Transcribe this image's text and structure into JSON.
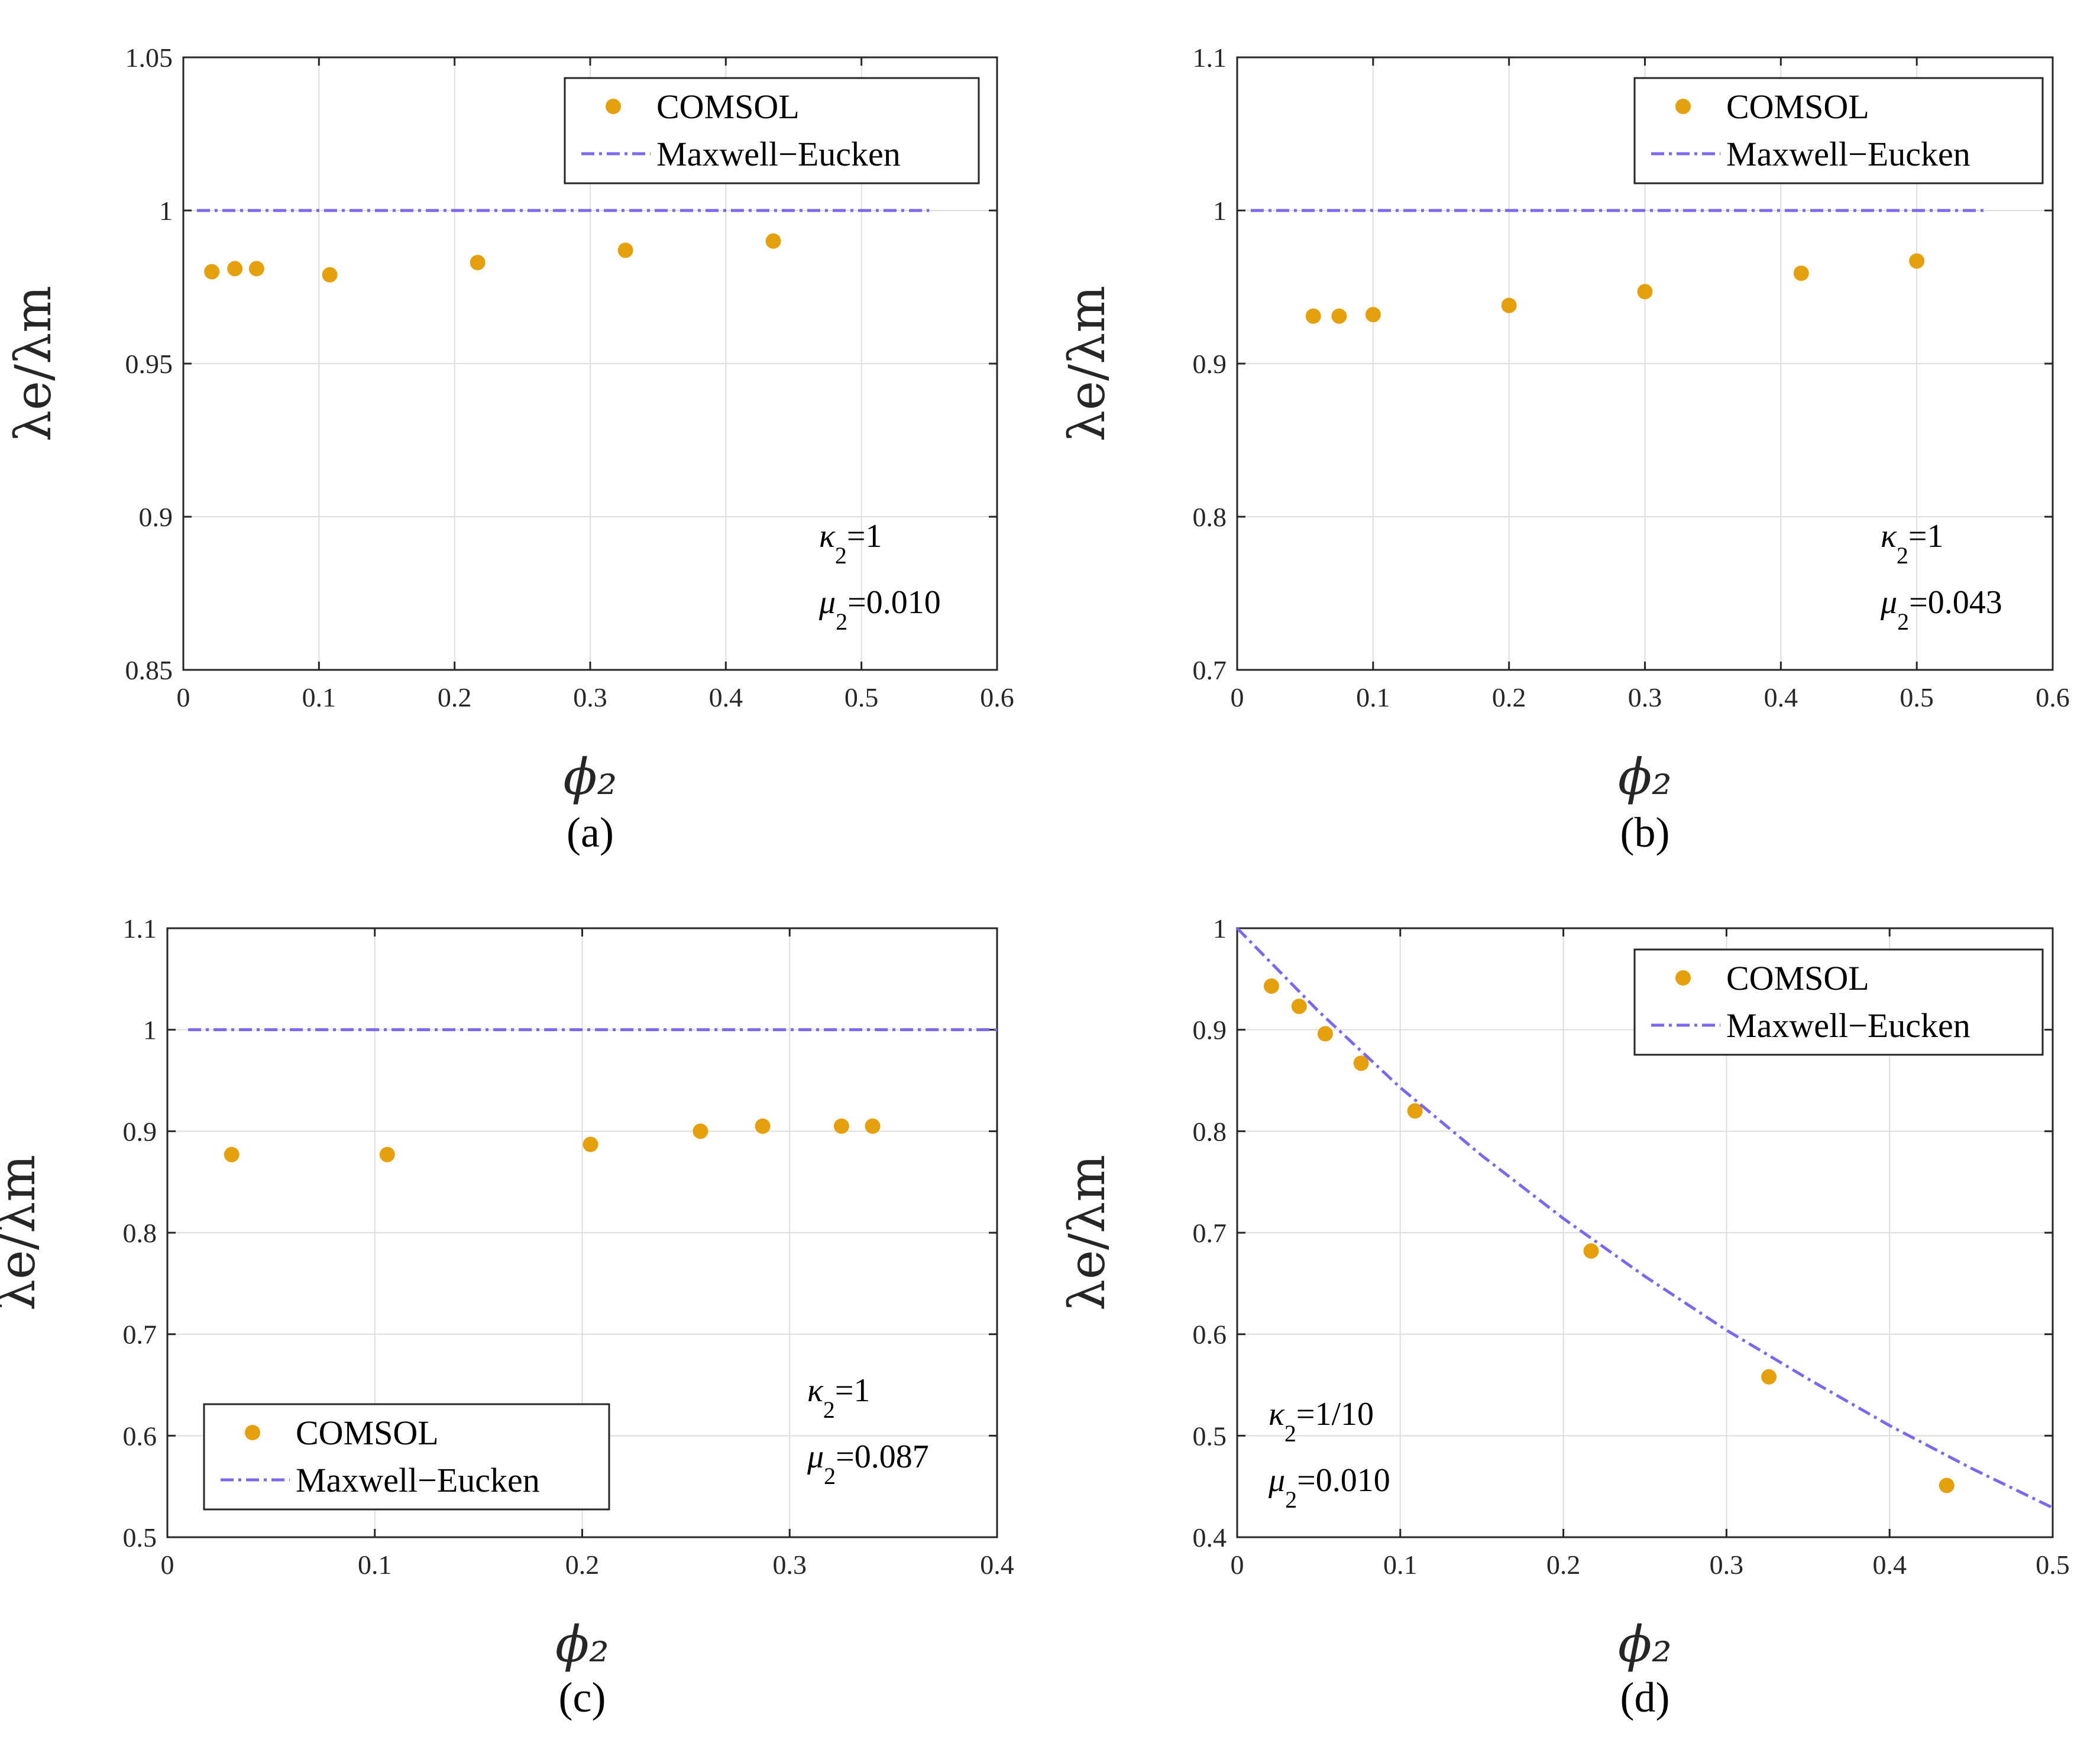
{
  "colors": {
    "comsol": "#e5a00d",
    "maxwell": "#7b68ee",
    "grid": "#dedede",
    "axis": "#262626"
  },
  "chart_data": [
    {
      "panel": "a",
      "panel_label": "(a)",
      "type": "scatter",
      "xlabel": "ϕ₂",
      "ylabel": "λe/λm",
      "xlim": [
        0,
        0.6
      ],
      "ylim": [
        0.85,
        1.05
      ],
      "xticks": [
        0,
        0.1,
        0.2,
        0.3,
        0.4,
        0.5,
        0.6
      ],
      "xtick_labels": [
        "0",
        "0.1",
        "0.2",
        "0.3",
        "0.4",
        "0.5",
        "0.6"
      ],
      "yticks": [
        0.85,
        0.9,
        0.95,
        1,
        1.05
      ],
      "ytick_labels": [
        "0.85",
        "0.9",
        "0.95",
        "1",
        "1.05"
      ],
      "grid": true,
      "legend": {
        "position": "top-right",
        "entries": [
          "COMSOL",
          "Maxwell−Eucken"
        ]
      },
      "annotation": {
        "position": "bottom-right",
        "lines": [
          [
            "κ",
            "2",
            "=1"
          ],
          [
            "μ",
            "2",
            "=0.010"
          ]
        ]
      },
      "series": [
        {
          "name": "COMSOL",
          "kind": "points",
          "x": [
            0.021,
            0.038,
            0.054,
            0.108,
            0.217,
            0.326,
            0.435
          ],
          "y": [
            0.98,
            0.981,
            0.981,
            0.979,
            0.983,
            0.987,
            0.99
          ]
        },
        {
          "name": "Maxwell−Eucken",
          "kind": "line",
          "style": "dash-dot",
          "x": [
            0.01,
            0.55
          ],
          "y": [
            1,
            1
          ]
        }
      ]
    },
    {
      "panel": "b",
      "panel_label": "(b)",
      "type": "scatter",
      "xlabel": "ϕ₂",
      "ylabel": "λe/λm",
      "xlim": [
        0,
        0.6
      ],
      "ylim": [
        0.7,
        1.1
      ],
      "xticks": [
        0,
        0.1,
        0.2,
        0.3,
        0.4,
        0.5,
        0.6
      ],
      "xtick_labels": [
        "0",
        "0.1",
        "0.2",
        "0.3",
        "0.4",
        "0.5",
        "0.6"
      ],
      "yticks": [
        0.7,
        0.8,
        0.9,
        1,
        1.1
      ],
      "ytick_labels": [
        "0.7",
        "0.8",
        "0.9",
        "1",
        "1.1"
      ],
      "grid": true,
      "legend": {
        "position": "top-right",
        "entries": [
          "COMSOL",
          "Maxwell−Eucken"
        ]
      },
      "annotation": {
        "position": "bottom-right",
        "lines": [
          [
            "κ",
            "2",
            "=1"
          ],
          [
            "μ",
            "2",
            "=0.043"
          ]
        ]
      },
      "series": [
        {
          "name": "COMSOL",
          "kind": "points",
          "x": [
            0.056,
            0.075,
            0.1,
            0.2,
            0.3,
            0.415,
            0.5
          ],
          "y": [
            0.931,
            0.931,
            0.932,
            0.938,
            0.947,
            0.959,
            0.967
          ]
        },
        {
          "name": "Maxwell−Eucken",
          "kind": "line",
          "style": "dash-dot",
          "x": [
            0.01,
            0.55
          ],
          "y": [
            1,
            1
          ]
        }
      ]
    },
    {
      "panel": "c",
      "panel_label": "(c)",
      "type": "scatter",
      "xlabel": "ϕ₂",
      "ylabel": "λe/λm",
      "xlim": [
        0,
        0.4
      ],
      "ylim": [
        0.5,
        1.1
      ],
      "xticks": [
        0,
        0.1,
        0.2,
        0.3,
        0.4
      ],
      "xtick_labels": [
        "0",
        "0.1",
        "0.2",
        "0.3",
        "0.4"
      ],
      "yticks": [
        0.5,
        0.6,
        0.7,
        0.8,
        0.9,
        1,
        1.1
      ],
      "ytick_labels": [
        "0.5",
        "0.6",
        "0.7",
        "0.8",
        "0.9",
        "1",
        "1.1"
      ],
      "grid": true,
      "legend": {
        "position": "bottom-left",
        "entries": [
          "COMSOL",
          "Maxwell−Eucken"
        ]
      },
      "annotation": {
        "position": "bottom-right",
        "lines": [
          [
            "κ",
            "2",
            "=1"
          ],
          [
            "μ",
            "2",
            "=0.087"
          ]
        ]
      },
      "series": [
        {
          "name": "COMSOL",
          "kind": "points",
          "x": [
            0.031,
            0.106,
            0.204,
            0.257,
            0.287,
            0.325,
            0.34
          ],
          "y": [
            0.877,
            0.877,
            0.887,
            0.9,
            0.905,
            0.905,
            0.905
          ]
        },
        {
          "name": "Maxwell−Eucken",
          "kind": "line",
          "style": "dash-dot",
          "x": [
            0.01,
            0.4
          ],
          "y": [
            1,
            1
          ]
        }
      ]
    },
    {
      "panel": "d",
      "panel_label": "(d)",
      "type": "scatter",
      "xlabel": "ϕ₂",
      "ylabel": "λe/λm",
      "xlim": [
        0,
        0.5
      ],
      "ylim": [
        0.4,
        1
      ],
      "xticks": [
        0,
        0.1,
        0.2,
        0.3,
        0.4,
        0.5
      ],
      "xtick_labels": [
        "0",
        "0.1",
        "0.2",
        "0.3",
        "0.4",
        "0.5"
      ],
      "yticks": [
        0.4,
        0.5,
        0.6,
        0.7,
        0.8,
        0.9,
        1
      ],
      "ytick_labels": [
        "0.4",
        "0.5",
        "0.6",
        "0.7",
        "0.8",
        "0.9",
        "1"
      ],
      "grid": true,
      "legend": {
        "position": "top-right",
        "entries": [
          "COMSOL",
          "Maxwell−Eucken"
        ]
      },
      "annotation": {
        "position": "bottom-left",
        "lines": [
          [
            "κ",
            "2",
            "=1/10"
          ],
          [
            "μ",
            "2",
            "=0.010"
          ]
        ]
      },
      "series": [
        {
          "name": "COMSOL",
          "kind": "points",
          "x": [
            0.021,
            0.038,
            0.054,
            0.076,
            0.109,
            0.217,
            0.326,
            0.435
          ],
          "y": [
            0.943,
            0.923,
            0.896,
            0.867,
            0.82,
            0.682,
            0.558,
            0.451
          ]
        },
        {
          "name": "Maxwell−Eucken",
          "kind": "line",
          "style": "dash-dot",
          "x": [
            0,
            0.05,
            0.1,
            0.15,
            0.2,
            0.25,
            0.3,
            0.35,
            0.4,
            0.45,
            0.5
          ],
          "y": [
            1.0,
            0.918,
            0.843,
            0.776,
            0.714,
            0.657,
            0.604,
            0.556,
            0.51,
            0.468,
            0.429
          ]
        }
      ]
    }
  ]
}
